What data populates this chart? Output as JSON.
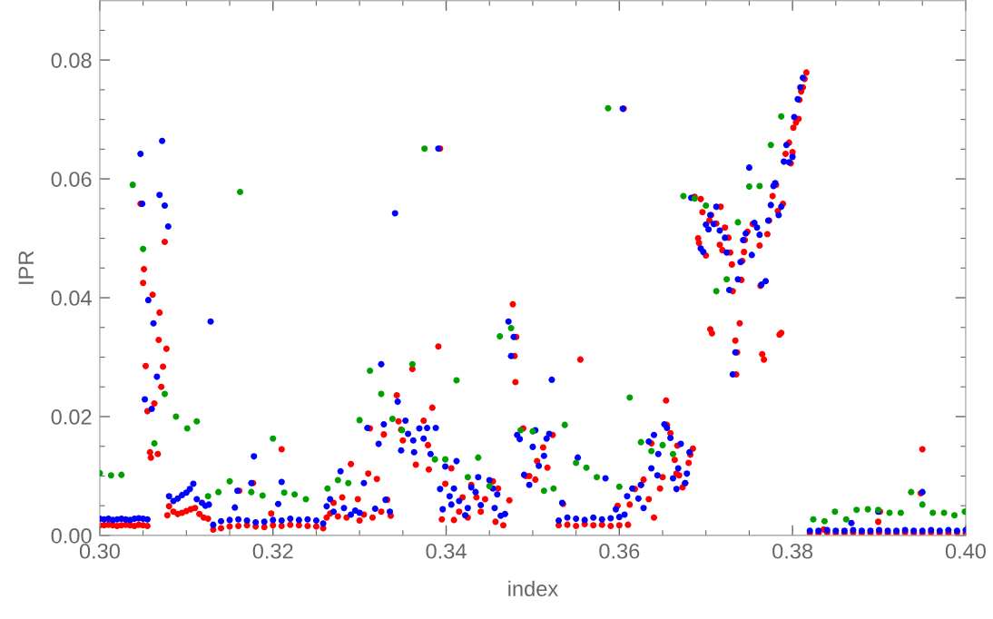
{
  "chart_data": {
    "type": "scatter",
    "xlabel": "index",
    "ylabel": "IPR",
    "marker": "circle",
    "grid": false,
    "xlim": [
      0.3,
      0.4
    ],
    "ylim": [
      0,
      0.09
    ],
    "xticks": [
      {
        "value": 0.3,
        "label": "0.30"
      },
      {
        "value": 0.305,
        "label": null
      },
      {
        "value": 0.31,
        "label": null
      },
      {
        "value": 0.315,
        "label": null
      },
      {
        "value": 0.32,
        "label": "0.32"
      },
      {
        "value": 0.325,
        "label": null
      },
      {
        "value": 0.33,
        "label": null
      },
      {
        "value": 0.335,
        "label": null
      },
      {
        "value": 0.34,
        "label": "0.34"
      },
      {
        "value": 0.345,
        "label": null
      },
      {
        "value": 0.35,
        "label": null
      },
      {
        "value": 0.355,
        "label": null
      },
      {
        "value": 0.36,
        "label": "0.36"
      },
      {
        "value": 0.365,
        "label": null
      },
      {
        "value": 0.37,
        "label": null
      },
      {
        "value": 0.375,
        "label": null
      },
      {
        "value": 0.38,
        "label": "0.38"
      },
      {
        "value": 0.385,
        "label": null
      },
      {
        "value": 0.39,
        "label": null
      },
      {
        "value": 0.395,
        "label": null
      },
      {
        "value": 0.4,
        "label": "0.40"
      }
    ],
    "yticks": [
      {
        "value": 0,
        "label": "0.00"
      },
      {
        "value": 0.005,
        "label": null
      },
      {
        "value": 0.01,
        "label": null
      },
      {
        "value": 0.015,
        "label": null
      },
      {
        "value": 0.02,
        "label": "0.02"
      },
      {
        "value": 0.025,
        "label": null
      },
      {
        "value": 0.03,
        "label": null
      },
      {
        "value": 0.035,
        "label": null
      },
      {
        "value": 0.04,
        "label": "0.04"
      },
      {
        "value": 0.045,
        "label": null
      },
      {
        "value": 0.05,
        "label": null
      },
      {
        "value": 0.055,
        "label": null
      },
      {
        "value": 0.06,
        "label": "0.06"
      },
      {
        "value": 0.065,
        "label": null
      },
      {
        "value": 0.07,
        "label": null
      },
      {
        "value": 0.075,
        "label": null
      },
      {
        "value": 0.08,
        "label": "0.08"
      },
      {
        "value": 0.085,
        "label": null
      }
    ],
    "series": [
      {
        "color": "#ff0000",
        "x": [
          0.3,
          0.3005,
          0.301,
          0.3015,
          0.302,
          0.3025,
          0.303,
          0.3035,
          0.304,
          0.3045,
          0.305,
          0.3055,
          0.3047,
          0.305,
          0.3051,
          0.3053,
          0.3055,
          0.3058,
          0.3059,
          0.3061,
          0.3063,
          0.3067,
          0.3068,
          0.3069,
          0.3071,
          0.3073,
          0.3075,
          0.3077,
          0.3078,
          0.308,
          0.3085,
          0.309,
          0.3095,
          0.31,
          0.3105,
          0.311,
          0.3115,
          0.312,
          0.3125,
          0.3131,
          0.314,
          0.315,
          0.316,
          0.317,
          0.318,
          0.319,
          0.32,
          0.321,
          0.322,
          0.323,
          0.324,
          0.325,
          0.3258,
          0.3161,
          0.3177,
          0.3198,
          0.321,
          0.3262,
          0.3266,
          0.327,
          0.3275,
          0.328,
          0.3285,
          0.329,
          0.3298,
          0.33,
          0.3305,
          0.331,
          0.3312,
          0.3315,
          0.332,
          0.3325,
          0.3328,
          0.3332,
          0.3336,
          0.3343,
          0.3345,
          0.3348,
          0.335,
          0.3361,
          0.3365,
          0.3374,
          0.3379,
          0.338,
          0.3384,
          0.3391,
          0.3393,
          0.3395,
          0.3399,
          0.3406,
          0.3409,
          0.3415,
          0.3419,
          0.3425,
          0.3429,
          0.3435,
          0.344,
          0.3445,
          0.3454,
          0.3457,
          0.346,
          0.3466,
          0.3473,
          0.3477,
          0.3479,
          0.348,
          0.3481,
          0.3489,
          0.3492,
          0.3496,
          0.3503,
          0.3505,
          0.3512,
          0.3517,
          0.3523,
          0.3535,
          0.353,
          0.354,
          0.355,
          0.356,
          0.357,
          0.358,
          0.359,
          0.36,
          0.361,
          0.3555,
          0.3598,
          0.3605,
          0.3612,
          0.3618,
          0.3625,
          0.3628,
          0.3634,
          0.3637,
          0.364,
          0.3647,
          0.365,
          0.3654,
          0.3655,
          0.3659,
          0.3664,
          0.3666,
          0.3667,
          0.3669,
          0.3673,
          0.3676,
          0.368,
          0.3682,
          0.3685,
          0.3687,
          0.3691,
          0.3692,
          0.3694,
          0.3696,
          0.37,
          0.3704,
          0.3706,
          0.3705,
          0.3707,
          0.3712,
          0.3716,
          0.3717,
          0.3719,
          0.3722,
          0.3726,
          0.3728,
          0.373,
          0.3731,
          0.3735,
          0.3736,
          0.3734,
          0.3739,
          0.3741,
          0.3742,
          0.3744,
          0.3745,
          0.3748,
          0.3754,
          0.3762,
          0.3763,
          0.3765,
          0.3767,
          0.3771,
          0.3773,
          0.3777,
          0.3781,
          0.3783,
          0.3785,
          0.3787,
          0.3789,
          0.3792,
          0.3796,
          0.3798,
          0.38,
          0.3801,
          0.3804,
          0.3807,
          0.3808,
          0.381,
          0.3812,
          0.3814,
          0.3816,
          0.382,
          0.383,
          0.384,
          0.385,
          0.386,
          0.387,
          0.388,
          0.389,
          0.39,
          0.391,
          0.392,
          0.393,
          0.394,
          0.395,
          0.396,
          0.397,
          0.398,
          0.399,
          0.4,
          0.3836,
          0.3899,
          0.3901,
          0.3948,
          0.395
        ],
        "values": [
          0.0017,
          0.0017,
          0.0018,
          0.0017,
          0.0016,
          0.0017,
          0.0018,
          0.0017,
          0.0016,
          0.0018,
          0.0017,
          0.0016,
          0.0558,
          0.0425,
          0.0448,
          0.0285,
          0.0209,
          0.014,
          0.0131,
          0.0405,
          0.0222,
          0.0137,
          0.0329,
          0.0375,
          0.025,
          0.0284,
          0.0494,
          0.0314,
          0.0034,
          0.0049,
          0.004,
          0.0036,
          0.0038,
          0.0041,
          0.0044,
          0.0046,
          0.0036,
          0.003,
          0.0028,
          0.001,
          0.0012,
          0.0015,
          0.0016,
          0.0017,
          0.0015,
          0.0014,
          0.0017,
          0.0016,
          0.0018,
          0.0017,
          0.0016,
          0.0015,
          0.0012,
          0.0075,
          0.0088,
          0.0037,
          0.0145,
          0.003,
          0.0037,
          0.0055,
          0.0032,
          0.0064,
          0.003,
          0.012,
          0.0061,
          0.0025,
          0.0035,
          0.0104,
          0.018,
          0.003,
          0.0095,
          0.004,
          0.017,
          0.006,
          0.0033,
          0.0236,
          0.0192,
          0.0178,
          0.016,
          0.028,
          0.0119,
          0.0193,
          0.0152,
          0.0111,
          0.0215,
          0.0318,
          0.0651,
          0.0027,
          0.0087,
          0.0113,
          0.0026,
          0.004,
          0.0064,
          0.003,
          0.0085,
          0.0064,
          0.004,
          0.0061,
          0.0091,
          0.0023,
          0.0079,
          0.0017,
          0.0059,
          0.0389,
          0.0302,
          0.0258,
          0.0334,
          0.018,
          0.01,
          0.01,
          0.0094,
          0.0125,
          0.0148,
          0.0114,
          0.0169,
          0.0053,
          0.0017,
          0.0018,
          0.0016,
          0.0019,
          0.0017,
          0.0018,
          0.0016,
          0.0017,
          0.0018,
          0.0296,
          0.005,
          0.0718,
          0.0052,
          0.0078,
          0.0085,
          0.0094,
          0.0061,
          0.0155,
          0.003,
          0.0079,
          0.0098,
          0.0227,
          0.0186,
          0.0172,
          0.0127,
          0.0104,
          0.0151,
          0.0101,
          0.0081,
          0.0088,
          0.0122,
          0.0136,
          0.0146,
          0.057,
          0.05,
          0.0492,
          0.0566,
          0.0544,
          0.0471,
          0.053,
          0.0539,
          0.0347,
          0.034,
          0.0525,
          0.0489,
          0.0553,
          0.048,
          0.0518,
          0.0501,
          0.0476,
          0.0456,
          0.0411,
          0.0271,
          0.0308,
          0.0328,
          0.0357,
          0.043,
          0.0462,
          0.0477,
          0.0497,
          0.0511,
          0.0524,
          0.0488,
          0.042,
          0.0305,
          0.0296,
          0.0507,
          0.053,
          0.0571,
          0.059,
          0.0546,
          0.0338,
          0.0341,
          0.0558,
          0.0642,
          0.0661,
          0.0626,
          0.0645,
          0.0686,
          0.0695,
          0.0701,
          0.0733,
          0.0747,
          0.0754,
          0.0768,
          0.0779,
          0.0004,
          0.0004,
          0.0005,
          0.0004,
          0.0004,
          0.0005,
          0.0004,
          0.0004,
          0.0005,
          0.0004,
          0.0004,
          0.0005,
          0.0004,
          0.0004,
          0.0005,
          0.0004,
          0.0004,
          0.0005,
          0.0004,
          0.001,
          0.0023,
          0.004,
          0.0071,
          0.0145
        ]
      },
      {
        "color": "#0000ff",
        "x": [
          0.3,
          0.3005,
          0.301,
          0.3015,
          0.302,
          0.3025,
          0.303,
          0.3035,
          0.304,
          0.3045,
          0.305,
          0.3055,
          0.3047,
          0.3049,
          0.3052,
          0.3056,
          0.306,
          0.3062,
          0.3066,
          0.3069,
          0.3072,
          0.3075,
          0.3079,
          0.308,
          0.3085,
          0.309,
          0.3095,
          0.31,
          0.3104,
          0.3108,
          0.3112,
          0.3118,
          0.3122,
          0.3126,
          0.3128,
          0.3131,
          0.314,
          0.315,
          0.316,
          0.317,
          0.318,
          0.319,
          0.32,
          0.321,
          0.322,
          0.323,
          0.324,
          0.325,
          0.3258,
          0.3156,
          0.3159,
          0.3175,
          0.3178,
          0.3206,
          0.321,
          0.3262,
          0.3266,
          0.327,
          0.3278,
          0.3282,
          0.329,
          0.3295,
          0.33,
          0.3305,
          0.3309,
          0.3322,
          0.3325,
          0.3328,
          0.3318,
          0.333,
          0.3335,
          0.3341,
          0.3344,
          0.3348,
          0.3353,
          0.3356,
          0.3362,
          0.3363,
          0.3369,
          0.3374,
          0.3378,
          0.3382,
          0.3388,
          0.3391,
          0.3393,
          0.3396,
          0.3399,
          0.3404,
          0.3406,
          0.3409,
          0.3412,
          0.3415,
          0.3422,
          0.3425,
          0.3429,
          0.3434,
          0.3437,
          0.344,
          0.345,
          0.3454,
          0.3456,
          0.3459,
          0.3463,
          0.3468,
          0.3472,
          0.3475,
          0.3478,
          0.3482,
          0.3485,
          0.349,
          0.3496,
          0.35,
          0.3503,
          0.3507,
          0.3513,
          0.3516,
          0.3519,
          0.3522,
          0.3534,
          0.353,
          0.354,
          0.355,
          0.356,
          0.357,
          0.358,
          0.359,
          0.36,
          0.3552,
          0.3584,
          0.3596,
          0.3604,
          0.3606,
          0.3609,
          0.3615,
          0.3622,
          0.3625,
          0.3628,
          0.3634,
          0.3637,
          0.364,
          0.3644,
          0.3645,
          0.3652,
          0.3655,
          0.3659,
          0.3662,
          0.3666,
          0.3668,
          0.3671,
          0.3678,
          0.3676,
          0.3681,
          0.3683,
          0.3694,
          0.3697,
          0.37,
          0.3703,
          0.3705,
          0.3709,
          0.3712,
          0.3716,
          0.3722,
          0.3724,
          0.3727,
          0.3731,
          0.3734,
          0.3737,
          0.374,
          0.3743,
          0.3746,
          0.375,
          0.3753,
          0.3756,
          0.3759,
          0.3762,
          0.3764,
          0.3769,
          0.3772,
          0.3775,
          0.3778,
          0.378,
          0.3784,
          0.3787,
          0.379,
          0.3793,
          0.3796,
          0.38,
          0.3802,
          0.3806,
          0.3809,
          0.3812,
          0.382,
          0.383,
          0.384,
          0.385,
          0.386,
          0.387,
          0.388,
          0.389,
          0.39,
          0.391,
          0.392,
          0.393,
          0.394,
          0.395,
          0.396,
          0.397,
          0.398,
          0.399,
          0.4,
          0.3868,
          0.3899,
          0.395
        ],
        "values": [
          0.0028,
          0.0027,
          0.0028,
          0.0026,
          0.0027,
          0.0028,
          0.0027,
          0.0026,
          0.0028,
          0.0029,
          0.0028,
          0.0027,
          0.0642,
          0.0558,
          0.0229,
          0.0396,
          0.0213,
          0.0357,
          0.0267,
          0.0573,
          0.0664,
          0.0555,
          0.052,
          0.0066,
          0.0058,
          0.0062,
          0.0068,
          0.0072,
          0.0078,
          0.0087,
          0.0061,
          0.0055,
          0.005,
          0.0052,
          0.036,
          0.0018,
          0.0024,
          0.0026,
          0.0027,
          0.0025,
          0.0022,
          0.0023,
          0.0026,
          0.0025,
          0.0028,
          0.0026,
          0.0027,
          0.0025,
          0.002,
          0.0047,
          0.0075,
          0.0088,
          0.0133,
          0.0053,
          0.009,
          0.0049,
          0.0061,
          0.004,
          0.0108,
          0.0046,
          0.0035,
          0.0042,
          0.0038,
          0.0088,
          0.0181,
          0.0154,
          0.0288,
          0.0187,
          0.0045,
          0.006,
          0.004,
          0.0542,
          0.0225,
          0.0143,
          0.0193,
          0.0171,
          0.016,
          0.014,
          0.018,
          0.0163,
          0.0181,
          0.0137,
          0.0181,
          0.0651,
          0.0078,
          0.0044,
          0.0116,
          0.0066,
          0.0052,
          0.0079,
          0.0125,
          0.0058,
          0.0034,
          0.0046,
          0.0081,
          0.0073,
          0.0098,
          0.0051,
          0.0093,
          0.0079,
          0.0046,
          0.0069,
          0.0033,
          0.0036,
          0.036,
          0.0302,
          0.0334,
          0.0169,
          0.0162,
          0.0102,
          0.0085,
          0.0149,
          0.0177,
          0.0117,
          0.0134,
          0.0163,
          0.0171,
          0.0262,
          0.0055,
          0.0025,
          0.003,
          0.0028,
          0.0026,
          0.003,
          0.0027,
          0.0029,
          0.0031,
          0.0131,
          0.0096,
          0.0044,
          0.0718,
          0.0035,
          0.0066,
          0.0079,
          0.0062,
          0.0085,
          0.0046,
          0.0158,
          0.0113,
          0.0169,
          0.0101,
          0.0137,
          0.0187,
          0.0181,
          0.0164,
          0.0096,
          0.0078,
          0.0113,
          0.0154,
          0.0104,
          0.0088,
          0.014,
          0.0568,
          0.0483,
          0.0477,
          0.0523,
          0.0515,
          0.0539,
          0.0524,
          0.0553,
          0.0513,
          0.0501,
          0.0476,
          0.0413,
          0.0271,
          0.0308,
          0.0431,
          0.046,
          0.0497,
          0.0508,
          0.0619,
          0.0472,
          0.0526,
          0.0518,
          0.0506,
          0.0422,
          0.0428,
          0.053,
          0.0556,
          0.0588,
          0.0593,
          0.0539,
          0.0553,
          0.0629,
          0.0657,
          0.0628,
          0.0637,
          0.0704,
          0.0734,
          0.0754,
          0.077,
          0.0008,
          0.0008,
          0.0009,
          0.0008,
          0.0008,
          0.0009,
          0.0008,
          0.0008,
          0.0009,
          0.0008,
          0.0008,
          0.0009,
          0.0008,
          0.0008,
          0.0009,
          0.0008,
          0.0009,
          0.0008,
          0.0009,
          0.0021,
          0.004,
          0.0073
        ]
      },
      {
        "color": "#00a000",
        "x": [
          0.3,
          0.3013,
          0.3025,
          0.3038,
          0.305,
          0.3063,
          0.3075,
          0.3088,
          0.3101,
          0.3112,
          0.3125,
          0.3137,
          0.315,
          0.3162,
          0.3175,
          0.3188,
          0.32,
          0.3213,
          0.3225,
          0.3238,
          0.3263,
          0.3275,
          0.3287,
          0.33,
          0.3312,
          0.3325,
          0.3338,
          0.3349,
          0.3361,
          0.3375,
          0.3387,
          0.3399,
          0.3412,
          0.3425,
          0.3437,
          0.345,
          0.3462,
          0.3475,
          0.3486,
          0.35,
          0.3513,
          0.3524,
          0.3537,
          0.355,
          0.3562,
          0.3574,
          0.3587,
          0.36,
          0.3612,
          0.3625,
          0.3637,
          0.365,
          0.3662,
          0.3674,
          0.3687,
          0.37,
          0.3712,
          0.3724,
          0.3737,
          0.375,
          0.3762,
          0.3775,
          0.3787,
          0.3824,
          0.3837,
          0.3849,
          0.3862,
          0.3874,
          0.3887,
          0.3899,
          0.3912,
          0.3925,
          0.3937,
          0.395,
          0.3962,
          0.3975,
          0.3987,
          0.3999
        ],
        "values": [
          0.0105,
          0.0101,
          0.0102,
          0.059,
          0.0482,
          0.0155,
          0.0238,
          0.02,
          0.018,
          0.0192,
          0.0066,
          0.0073,
          0.0091,
          0.0578,
          0.0073,
          0.0067,
          0.0163,
          0.0072,
          0.0069,
          0.0061,
          0.0079,
          0.0093,
          0.0088,
          0.0194,
          0.0277,
          0.0238,
          0.0196,
          0.0177,
          0.0288,
          0.0651,
          0.0128,
          0.0128,
          0.0261,
          0.0098,
          0.0131,
          0.0083,
          0.0335,
          0.0349,
          0.0177,
          0.0175,
          0.0075,
          0.0079,
          0.0186,
          0.0122,
          0.0114,
          0.0098,
          0.0719,
          0.0082,
          0.0232,
          0.0157,
          0.0142,
          0.0152,
          0.0137,
          0.0571,
          0.0567,
          0.0555,
          0.0411,
          0.0431,
          0.0527,
          0.0587,
          0.0588,
          0.0657,
          0.0705,
          0.0027,
          0.0024,
          0.004,
          0.0027,
          0.0043,
          0.0044,
          0.0043,
          0.0038,
          0.0038,
          0.0073,
          0.0052,
          0.0038,
          0.0038,
          0.0034,
          0.004
        ]
      }
    ]
  }
}
